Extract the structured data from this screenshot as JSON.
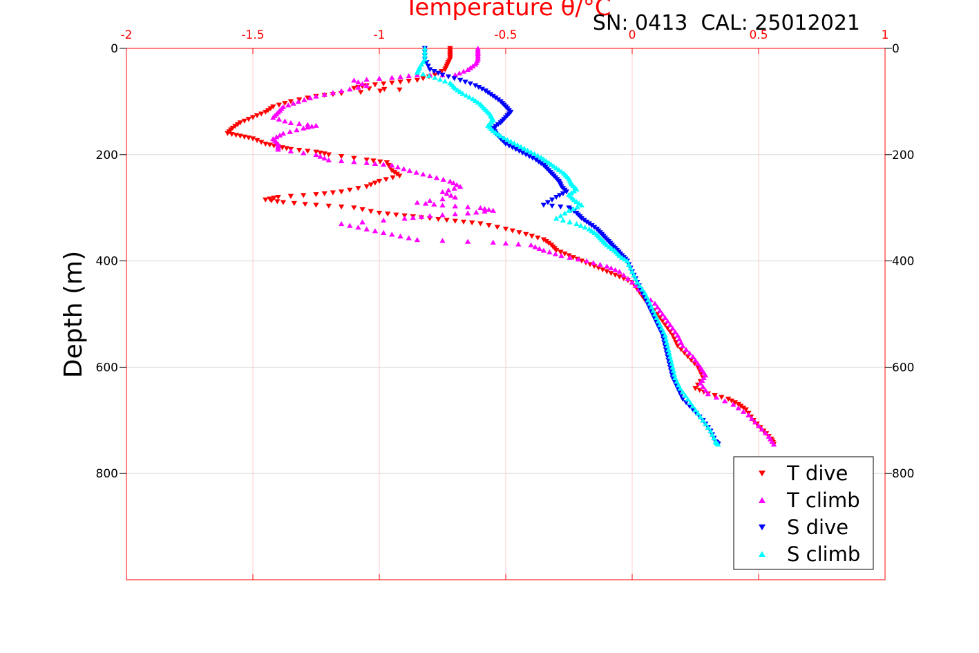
{
  "chart_data": {
    "type": "scatter",
    "title": "Temperature θ/°C",
    "annotation": "SN: 0413  CAL: 25012021",
    "ylabel": "Depth (m)",
    "xlim": [
      -2,
      1
    ],
    "ylim": [
      0,
      1000
    ],
    "y_reversed": true,
    "x_ticks": [
      "-2",
      "-1.5",
      "-1",
      "-0.5",
      "0",
      "0.5",
      "1"
    ],
    "y_ticks": [
      "0",
      "200",
      "400",
      "600",
      "800"
    ],
    "grid": true,
    "legend_position": "bottom-right",
    "series": [
      {
        "name": "T dive",
        "marker": "triangle-down",
        "color": "#ff0000",
        "points": [
          [
            -0.72,
            0
          ],
          [
            -0.72,
            10
          ],
          [
            -0.72,
            20
          ],
          [
            -0.73,
            30
          ],
          [
            -0.74,
            40
          ],
          [
            -0.78,
            50
          ],
          [
            -0.85,
            60
          ],
          [
            -0.95,
            65
          ],
          [
            -1.05,
            70
          ],
          [
            -1.1,
            75
          ],
          [
            -0.92,
            78
          ],
          [
            -1.15,
            85
          ],
          [
            -1.25,
            90
          ],
          [
            -1.35,
            100
          ],
          [
            -1.42,
            110
          ],
          [
            -1.45,
            120
          ],
          [
            -1.5,
            130
          ],
          [
            -1.55,
            140
          ],
          [
            -1.58,
            150
          ],
          [
            -1.6,
            160
          ],
          [
            -1.55,
            165
          ],
          [
            -1.5,
            170
          ],
          [
            -1.45,
            180
          ],
          [
            -1.4,
            185
          ],
          [
            -1.35,
            190
          ],
          [
            -1.25,
            195
          ],
          [
            -1.2,
            200
          ],
          [
            -1.05,
            210
          ],
          [
            -0.97,
            215
          ],
          [
            -0.95,
            230
          ],
          [
            -0.92,
            240
          ],
          [
            -1.0,
            250
          ],
          [
            -1.05,
            260
          ],
          [
            -1.15,
            270
          ],
          [
            -1.25,
            275
          ],
          [
            -1.4,
            280
          ],
          [
            -1.45,
            285
          ],
          [
            -1.38,
            290
          ],
          [
            -1.25,
            295
          ],
          [
            -1.1,
            300
          ],
          [
            -1.0,
            310
          ],
          [
            -0.9,
            315
          ],
          [
            -0.8,
            320
          ],
          [
            -0.7,
            325
          ],
          [
            -0.6,
            330
          ],
          [
            -0.5,
            340
          ],
          [
            -0.42,
            350
          ],
          [
            -0.35,
            360
          ],
          [
            -0.32,
            370
          ],
          [
            -0.3,
            380
          ],
          [
            -0.25,
            390
          ],
          [
            -0.2,
            400
          ],
          [
            -0.15,
            410
          ],
          [
            -0.1,
            420
          ],
          [
            -0.05,
            430
          ],
          [
            0.0,
            440
          ],
          [
            0.03,
            460
          ],
          [
            0.06,
            480
          ],
          [
            0.1,
            500
          ],
          [
            0.13,
            520
          ],
          [
            0.16,
            540
          ],
          [
            0.18,
            560
          ],
          [
            0.22,
            580
          ],
          [
            0.26,
            600
          ],
          [
            0.28,
            620
          ],
          [
            0.25,
            640
          ],
          [
            0.3,
            650
          ],
          [
            0.38,
            660
          ],
          [
            0.42,
            670
          ],
          [
            0.45,
            680
          ],
          [
            0.48,
            700
          ],
          [
            0.52,
            720
          ],
          [
            0.55,
            735
          ],
          [
            0.56,
            745
          ]
        ]
      },
      {
        "name": "T climb",
        "marker": "triangle-up",
        "color": "#ff00ff",
        "points": [
          [
            -0.61,
            0
          ],
          [
            -0.61,
            10
          ],
          [
            -0.61,
            20
          ],
          [
            -0.62,
            30
          ],
          [
            -0.65,
            40
          ],
          [
            -0.7,
            50
          ],
          [
            -0.85,
            50
          ],
          [
            -0.95,
            55
          ],
          [
            -1.1,
            60
          ],
          [
            -1.05,
            70
          ],
          [
            -1.15,
            80
          ],
          [
            -1.25,
            90
          ],
          [
            -1.32,
            100
          ],
          [
            -1.38,
            110
          ],
          [
            -1.4,
            120
          ],
          [
            -1.42,
            130
          ],
          [
            -1.35,
            140
          ],
          [
            -1.25,
            145
          ],
          [
            -1.3,
            150
          ],
          [
            -1.38,
            160
          ],
          [
            -1.42,
            170
          ],
          [
            -1.4,
            180
          ],
          [
            -1.4,
            190
          ],
          [
            -1.25,
            200
          ],
          [
            -1.2,
            210
          ],
          [
            -1.05,
            215
          ],
          [
            -0.95,
            220
          ],
          [
            -0.88,
            230
          ],
          [
            -0.8,
            240
          ],
          [
            -0.72,
            250
          ],
          [
            -0.68,
            260
          ],
          [
            -0.75,
            270
          ],
          [
            -0.7,
            280
          ],
          [
            -0.85,
            290
          ],
          [
            -0.75,
            295
          ],
          [
            -0.6,
            300
          ],
          [
            -0.55,
            305
          ],
          [
            -0.65,
            310
          ],
          [
            -0.8,
            315
          ],
          [
            -0.9,
            320
          ],
          [
            -1.15,
            330
          ],
          [
            -1.05,
            340
          ],
          [
            -0.95,
            350
          ],
          [
            -0.85,
            360
          ],
          [
            -0.55,
            365
          ],
          [
            -0.4,
            370
          ],
          [
            -0.35,
            380
          ],
          [
            -0.28,
            390
          ],
          [
            -0.18,
            400
          ],
          [
            -0.1,
            410
          ],
          [
            -0.05,
            420
          ],
          [
            0.0,
            440
          ],
          [
            0.04,
            460
          ],
          [
            0.09,
            480
          ],
          [
            0.12,
            500
          ],
          [
            0.15,
            520
          ],
          [
            0.18,
            540
          ],
          [
            0.2,
            560
          ],
          [
            0.24,
            580
          ],
          [
            0.27,
            600
          ],
          [
            0.29,
            615
          ],
          [
            0.27,
            630
          ],
          [
            0.3,
            650
          ],
          [
            0.4,
            670
          ],
          [
            0.46,
            690
          ],
          [
            0.5,
            710
          ],
          [
            0.54,
            730
          ],
          [
            0.56,
            745
          ]
        ]
      },
      {
        "name": "S dive",
        "marker": "triangle-down",
        "color": "#0000ff",
        "points": [
          [
            -0.82,
            0
          ],
          [
            -0.82,
            20
          ],
          [
            -0.8,
            40
          ],
          [
            -0.75,
            50
          ],
          [
            -0.68,
            60
          ],
          [
            -0.62,
            70
          ],
          [
            -0.58,
            80
          ],
          [
            -0.55,
            90
          ],
          [
            -0.52,
            100
          ],
          [
            -0.5,
            110
          ],
          [
            -0.48,
            120
          ],
          [
            -0.5,
            130
          ],
          [
            -0.52,
            140
          ],
          [
            -0.55,
            150
          ],
          [
            -0.54,
            160
          ],
          [
            -0.52,
            170
          ],
          [
            -0.5,
            180
          ],
          [
            -0.46,
            190
          ],
          [
            -0.42,
            200
          ],
          [
            -0.38,
            210
          ],
          [
            -0.35,
            220
          ],
          [
            -0.33,
            230
          ],
          [
            -0.31,
            240
          ],
          [
            -0.29,
            250
          ],
          [
            -0.28,
            260
          ],
          [
            -0.26,
            270
          ],
          [
            -0.3,
            280
          ],
          [
            -0.35,
            295
          ],
          [
            -0.25,
            300
          ],
          [
            -0.22,
            310
          ],
          [
            -0.2,
            320
          ],
          [
            -0.17,
            330
          ],
          [
            -0.14,
            340
          ],
          [
            -0.12,
            350
          ],
          [
            -0.1,
            360
          ],
          [
            -0.08,
            370
          ],
          [
            -0.06,
            380
          ],
          [
            -0.04,
            390
          ],
          [
            -0.02,
            400
          ],
          [
            0.0,
            420
          ],
          [
            0.02,
            440
          ],
          [
            0.04,
            460
          ],
          [
            0.06,
            480
          ],
          [
            0.08,
            500
          ],
          [
            0.1,
            520
          ],
          [
            0.12,
            540
          ],
          [
            0.13,
            560
          ],
          [
            0.14,
            580
          ],
          [
            0.15,
            600
          ],
          [
            0.16,
            620
          ],
          [
            0.18,
            640
          ],
          [
            0.2,
            660
          ],
          [
            0.24,
            680
          ],
          [
            0.28,
            700
          ],
          [
            0.31,
            720
          ],
          [
            0.33,
            740
          ],
          [
            0.34,
            745
          ]
        ]
      },
      {
        "name": "S climb",
        "marker": "triangle-up",
        "color": "#00ffff",
        "points": [
          [
            -0.82,
            0
          ],
          [
            -0.82,
            20
          ],
          [
            -0.84,
            35
          ],
          [
            -0.85,
            45
          ],
          [
            -0.78,
            55
          ],
          [
            -0.72,
            65
          ],
          [
            -0.7,
            75
          ],
          [
            -0.67,
            85
          ],
          [
            -0.63,
            95
          ],
          [
            -0.6,
            105
          ],
          [
            -0.58,
            115
          ],
          [
            -0.56,
            125
          ],
          [
            -0.55,
            135
          ],
          [
            -0.57,
            145
          ],
          [
            -0.55,
            155
          ],
          [
            -0.52,
            165
          ],
          [
            -0.48,
            175
          ],
          [
            -0.44,
            185
          ],
          [
            -0.4,
            195
          ],
          [
            -0.36,
            205
          ],
          [
            -0.33,
            215
          ],
          [
            -0.3,
            225
          ],
          [
            -0.27,
            235
          ],
          [
            -0.25,
            245
          ],
          [
            -0.24,
            255
          ],
          [
            -0.22,
            265
          ],
          [
            -0.25,
            275
          ],
          [
            -0.23,
            285
          ],
          [
            -0.2,
            295
          ],
          [
            -0.25,
            305
          ],
          [
            -0.3,
            320
          ],
          [
            -0.22,
            330
          ],
          [
            -0.17,
            340
          ],
          [
            -0.14,
            350
          ],
          [
            -0.12,
            360
          ],
          [
            -0.1,
            370
          ],
          [
            -0.07,
            380
          ],
          [
            -0.05,
            390
          ],
          [
            -0.02,
            400
          ],
          [
            0.0,
            420
          ],
          [
            0.02,
            440
          ],
          [
            0.05,
            460
          ],
          [
            0.07,
            480
          ],
          [
            0.09,
            500
          ],
          [
            0.11,
            520
          ],
          [
            0.13,
            540
          ],
          [
            0.14,
            560
          ],
          [
            0.15,
            580
          ],
          [
            0.16,
            600
          ],
          [
            0.17,
            620
          ],
          [
            0.19,
            640
          ],
          [
            0.22,
            660
          ],
          [
            0.25,
            680
          ],
          [
            0.28,
            700
          ],
          [
            0.31,
            720
          ],
          [
            0.33,
            740
          ],
          [
            0.34,
            745
          ]
        ]
      }
    ]
  }
}
